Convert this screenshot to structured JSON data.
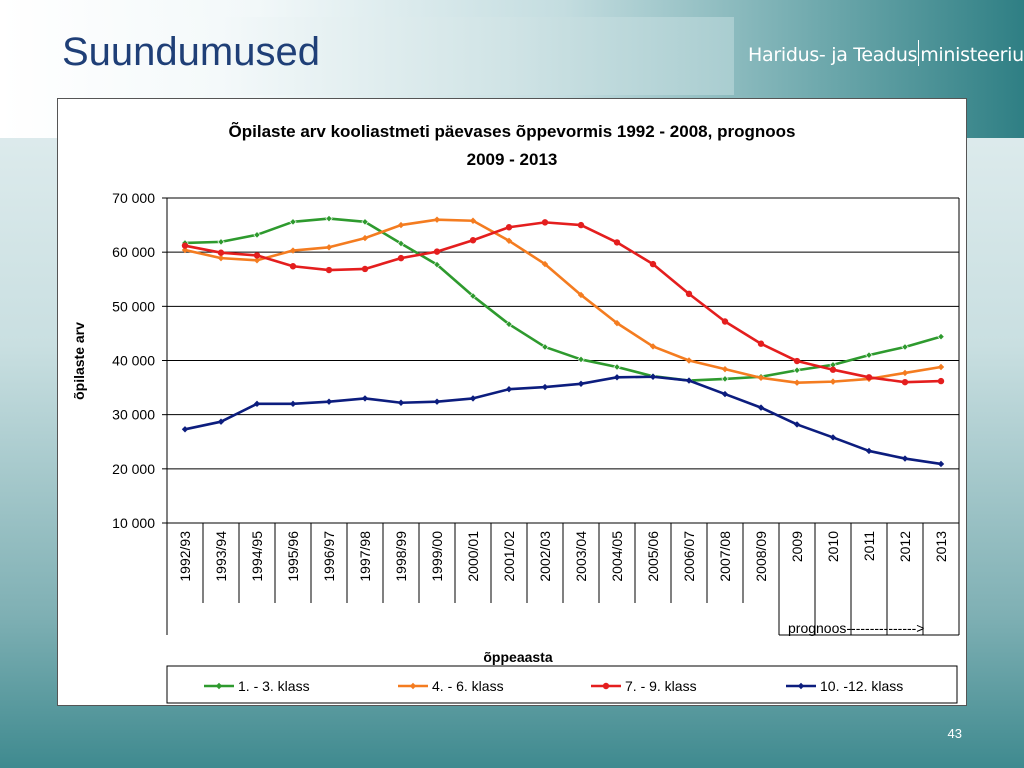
{
  "slide": {
    "title": "Suundumused",
    "ministry": {
      "part1": "Haridus- ja Teadus",
      "part2": "ministeerium"
    },
    "page_number": "43"
  },
  "colors": {
    "series_green": "#2e9a2e",
    "series_orange": "#f47c20",
    "series_red": "#e41e1e",
    "series_navy": "#0c1d7e",
    "title_blue": "#1f3f77"
  },
  "chart_data": {
    "type": "line",
    "title_line1": "Õpilaste arv kooliastmeti päevases õppevormis 1992 - 2008, prognoos",
    "title_line2": "2009 - 2013",
    "ylabel": "õpilaste arv",
    "xlabel": "õppeaasta",
    "prognosis_label": "prognoos--------------->",
    "ylim": [
      10000,
      70000
    ],
    "yticks": [
      "70 000",
      "60 000",
      "50 000",
      "40 000",
      "30 000",
      "20 000",
      "10 000"
    ],
    "grid": true,
    "legend_position": "bottom",
    "categories": [
      "1992/93",
      "1993/94",
      "1994/95",
      "1995/96",
      "1996/97",
      "1997/98",
      "1998/99",
      "1999/00",
      "2000/01",
      "2001/02",
      "2002/03",
      "2003/04",
      "2004/05",
      "2005/06",
      "2006/07",
      "2007/08",
      "2008/09",
      "2009",
      "2010",
      "2011",
      "2012",
      "2013"
    ],
    "series": [
      {
        "name": "1. - 3. klass",
        "color": "#2e9a2e",
        "values": [
          61700,
          61900,
          63200,
          65600,
          66200,
          65600,
          61600,
          57700,
          51900,
          46700,
          42500,
          40200,
          38800,
          37100,
          36300,
          36600,
          37000,
          38200,
          39200,
          41000,
          42500,
          44400
        ]
      },
      {
        "name": "4. - 6. klass",
        "color": "#f47c20",
        "values": [
          60400,
          58900,
          58500,
          60300,
          60900,
          62600,
          65000,
          66000,
          65800,
          62100,
          57800,
          52100,
          46900,
          42600,
          40000,
          38400,
          36800,
          35900,
          36100,
          36600,
          37700,
          38800
        ]
      },
      {
        "name": "7. - 9. klass",
        "color": "#e41e1e",
        "values": [
          61200,
          59900,
          59400,
          57400,
          56700,
          56900,
          58900,
          60100,
          62200,
          64600,
          65500,
          65000,
          61800,
          57800,
          52300,
          47200,
          43100,
          39900,
          38300,
          36900,
          36000,
          36200
        ]
      },
      {
        "name": "10. -12. klass",
        "color": "#0c1d7e",
        "values": [
          27300,
          28700,
          32000,
          32000,
          32400,
          33000,
          32200,
          32400,
          33000,
          34700,
          35100,
          35700,
          36900,
          37000,
          36300,
          33800,
          31300,
          28200,
          25800,
          23300,
          21900,
          20900
        ]
      }
    ]
  }
}
